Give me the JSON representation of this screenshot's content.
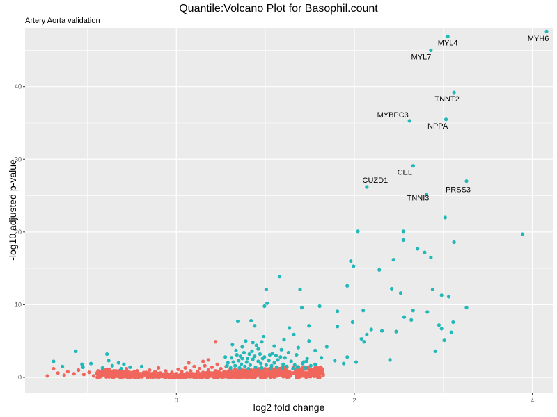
{
  "chart_data": {
    "type": "scatter",
    "title": "Quantile:Volcano Plot for Basophil.count",
    "subtitle": "Artery Aorta validation",
    "xlabel": "log2 fold change",
    "ylabel": "-log10 adjusted p-value",
    "xlim": [
      -1.7,
      4.23
    ],
    "ylim": [
      -2.2,
      48.1
    ],
    "x_ticks": [
      0,
      2,
      4
    ],
    "y_ticks": [
      0,
      10,
      20,
      30,
      40
    ],
    "grid": true,
    "colors": {
      "panel": "#ebebeb",
      "grid": "#ffffff",
      "significant": "#20b8b8",
      "not_significant": "#f0665c"
    },
    "labeled_points": [
      {
        "label": "MYH6",
        "x": 4.16,
        "y": 47.6
      },
      {
        "label": "MYL4",
        "x": 3.05,
        "y": 46.9
      },
      {
        "label": "MYL7",
        "x": 2.86,
        "y": 45.0
      },
      {
        "label": "TNNT2",
        "x": 3.12,
        "y": 39.2
      },
      {
        "label": "MYBPC3",
        "x": 2.62,
        "y": 35.3
      },
      {
        "label": "NPPA",
        "x": 3.03,
        "y": 35.5
      },
      {
        "label": "CEL",
        "x": 2.66,
        "y": 29.1
      },
      {
        "label": "PRSS3",
        "x": 3.26,
        "y": 27.0
      },
      {
        "label": "CUZD1",
        "x": 2.14,
        "y": 26.2
      },
      {
        "label": "TNNI3",
        "x": 2.81,
        "y": 25.2
      }
    ],
    "significant_points": [
      [
        3.89,
        19.7
      ],
      [
        3.02,
        22.0
      ],
      [
        3.12,
        18.6
      ],
      [
        2.04,
        20.1
      ],
      [
        2.55,
        20.1
      ],
      [
        2.55,
        18.9
      ],
      [
        2.71,
        17.7
      ],
      [
        2.79,
        17.2
      ],
      [
        2.86,
        16.5
      ],
      [
        1.96,
        16.0
      ],
      [
        2.44,
        16.2
      ],
      [
        1.99,
        15.3
      ],
      [
        2.28,
        14.8
      ],
      [
        1.16,
        13.9
      ],
      [
        1.01,
        12.1
      ],
      [
        1.39,
        12.1
      ],
      [
        1.92,
        12.6
      ],
      [
        2.42,
        12.2
      ],
      [
        2.52,
        11.6
      ],
      [
        2.88,
        12.1
      ],
      [
        2.98,
        11.3
      ],
      [
        3.06,
        11.1
      ],
      [
        1.02,
        10.2
      ],
      [
        0.99,
        9.8
      ],
      [
        1.41,
        9.6
      ],
      [
        1.61,
        9.8
      ],
      [
        1.81,
        9.1
      ],
      [
        2.1,
        9.2
      ],
      [
        2.66,
        9.2
      ],
      [
        2.82,
        9.0
      ],
      [
        3.26,
        9.6
      ],
      [
        2.56,
        8.3
      ],
      [
        2.64,
        7.9
      ],
      [
        2.95,
        7.2
      ],
      [
        3.11,
        7.6
      ],
      [
        0.84,
        7.8
      ],
      [
        0.69,
        7.7
      ],
      [
        0.88,
        7.1
      ],
      [
        1.49,
        7.1
      ],
      [
        1.81,
        7.0
      ],
      [
        1.98,
        7.6
      ],
      [
        2.19,
        6.6
      ],
      [
        2.47,
        6.3
      ],
      [
        2.98,
        6.7
      ],
      [
        3.09,
        6.2
      ],
      [
        2.14,
        5.9
      ],
      [
        2.08,
        5.3
      ],
      [
        2.11,
        4.9
      ],
      [
        2.31,
        6.4
      ],
      [
        3.01,
        5.1
      ],
      [
        1.27,
        6.8
      ],
      [
        1.32,
        5.9
      ],
      [
        1.21,
        5.2
      ],
      [
        1.37,
        4.1
      ],
      [
        1.49,
        5.0
      ],
      [
        1.69,
        4.2
      ],
      [
        0.98,
        5.6
      ],
      [
        0.78,
        5.0
      ],
      [
        0.63,
        4.5
      ],
      [
        0.67,
        3.7
      ],
      [
        0.82,
        3.2
      ],
      [
        0.74,
        2.6
      ],
      [
        0.92,
        3.9
      ],
      [
        1.05,
        3.1
      ],
      [
        1.14,
        2.4
      ],
      [
        1.26,
        3.4
      ],
      [
        1.43,
        2.1
      ],
      [
        1.56,
        1.8
      ],
      [
        1.63,
        2.7
      ],
      [
        1.78,
        2.3
      ],
      [
        1.88,
        1.9
      ],
      [
        1.92,
        2.8
      ],
      [
        2.02,
        2.1
      ],
      [
        1.56,
        3.7
      ],
      [
        2.91,
        3.6
      ],
      [
        2.4,
        2.4
      ],
      [
        0.58,
        2.0
      ],
      [
        0.61,
        1.3
      ],
      [
        0.66,
        1.6
      ],
      [
        0.7,
        2.3
      ],
      [
        0.73,
        1.8
      ],
      [
        0.77,
        1.5
      ],
      [
        0.79,
        2.1
      ],
      [
        0.83,
        1.7
      ],
      [
        0.86,
        2.5
      ],
      [
        0.89,
        1.4
      ],
      [
        0.92,
        2.2
      ],
      [
        0.95,
        1.9
      ],
      [
        0.97,
        2.6
      ],
      [
        1.01,
        1.7
      ],
      [
        1.04,
        2.3
      ],
      [
        1.07,
        1.6
      ],
      [
        1.1,
        2.0
      ],
      [
        1.13,
        1.4
      ],
      [
        1.17,
        2.8
      ],
      [
        1.2,
        1.8
      ],
      [
        1.24,
        1.5
      ],
      [
        1.29,
        2.2
      ],
      [
        1.33,
        1.7
      ],
      [
        1.36,
        1.4
      ],
      [
        1.42,
        1.9
      ],
      [
        1.46,
        2.2
      ],
      [
        1.51,
        1.6
      ],
      [
        0.55,
        2.8
      ],
      [
        0.62,
        2.7
      ],
      [
        0.68,
        3.1
      ],
      [
        0.72,
        2.9
      ],
      [
        0.76,
        3.4
      ],
      [
        0.8,
        2.6
      ],
      [
        0.85,
        3.6
      ],
      [
        0.88,
        2.9
      ],
      [
        0.94,
        3.2
      ],
      [
        0.99,
        2.8
      ],
      [
        1.08,
        3.3
      ],
      [
        1.12,
        3.0
      ],
      [
        1.18,
        3.8
      ],
      [
        1.22,
        2.7
      ],
      [
        1.35,
        3.1
      ],
      [
        1.47,
        2.6
      ],
      [
        0.57,
        1.6
      ],
      [
        0.64,
        2.1
      ],
      [
        0.71,
        1.3
      ],
      [
        0.81,
        1.2
      ],
      [
        0.96,
        1.3
      ],
      [
        1.06,
        1.2
      ],
      [
        1.19,
        1.3
      ],
      [
        1.31,
        1.2
      ],
      [
        1.45,
        1.3
      ],
      [
        0.9,
        4.4
      ],
      [
        0.86,
        4.8
      ],
      [
        1.1,
        4.3
      ],
      [
        0.96,
        4.9
      ],
      [
        0.74,
        4.2
      ],
      [
        -1.38,
        2.2
      ],
      [
        -1.13,
        3.6
      ],
      [
        -1.06,
        1.8
      ],
      [
        -0.96,
        1.9
      ],
      [
        -0.78,
        3.2
      ],
      [
        -0.76,
        2.3
      ],
      [
        -0.59,
        1.8
      ],
      [
        -0.52,
        1.4
      ],
      [
        -0.72,
        1.6
      ],
      [
        -0.65,
        2.0
      ],
      [
        -0.39,
        1.5
      ],
      [
        -1.28,
        1.5
      ],
      [
        -1.05,
        1.4
      ],
      [
        -0.83,
        1.3
      ],
      [
        -0.62,
        1.2
      ]
    ],
    "nonsignificant_points": [
      [
        -1.45,
        0.2
      ],
      [
        -1.38,
        1.2
      ],
      [
        -1.33,
        0.6
      ],
      [
        -1.26,
        0.3
      ],
      [
        -1.22,
        0.8
      ],
      [
        -1.15,
        0.5
      ],
      [
        -1.1,
        1.0
      ],
      [
        -1.04,
        0.4
      ],
      [
        -0.98,
        0.7
      ],
      [
        -0.93,
        0.2
      ],
      [
        -0.88,
        0.9
      ],
      [
        -0.84,
        0.5
      ],
      [
        -0.79,
        0.3
      ],
      [
        -0.75,
        1.1
      ],
      [
        -0.71,
        0.6
      ],
      [
        -0.67,
        0.2
      ],
      [
        -0.63,
        0.8
      ],
      [
        -0.6,
        0.4
      ],
      [
        -0.56,
        1.2
      ],
      [
        -0.52,
        0.6
      ],
      [
        -0.48,
        0.3
      ],
      [
        -0.44,
        0.9
      ],
      [
        -0.41,
        0.5
      ],
      [
        -0.37,
        0.2
      ],
      [
        -0.34,
        0.7
      ],
      [
        -0.3,
        1.0
      ],
      [
        -0.27,
        0.4
      ],
      [
        -0.24,
        0.8
      ],
      [
        -0.21,
        0.3
      ],
      [
        -0.18,
        0.6
      ],
      [
        -0.15,
        0.2
      ],
      [
        -0.12,
        0.9
      ],
      [
        -0.1,
        0.5
      ],
      [
        -0.07,
        0.3
      ],
      [
        -0.05,
        0.7
      ],
      [
        -0.02,
        0.2
      ],
      [
        0.0,
        0.5
      ],
      [
        0.02,
        1.1
      ],
      [
        0.04,
        0.3
      ],
      [
        0.06,
        0.8
      ],
      [
        0.08,
        0.4
      ],
      [
        0.1,
        1.3
      ],
      [
        0.12,
        0.6
      ],
      [
        0.14,
        0.2
      ],
      [
        0.16,
        0.9
      ],
      [
        0.18,
        0.5
      ],
      [
        0.2,
        1.5
      ],
      [
        0.22,
        0.3
      ],
      [
        0.24,
        0.8
      ],
      [
        0.26,
        1.2
      ],
      [
        0.28,
        0.4
      ],
      [
        0.3,
        0.7
      ],
      [
        0.32,
        1.6
      ],
      [
        0.34,
        0.3
      ],
      [
        0.36,
        1.0
      ],
      [
        0.38,
        0.5
      ],
      [
        0.4,
        1.4
      ],
      [
        0.42,
        0.2
      ],
      [
        0.44,
        0.9
      ],
      [
        0.46,
        1.8
      ],
      [
        0.48,
        0.6
      ],
      [
        0.5,
        1.2
      ],
      [
        0.52,
        0.3
      ],
      [
        0.54,
        0.8
      ],
      [
        0.56,
        1.5
      ],
      [
        0.58,
        0.4
      ],
      [
        0.6,
        1.0
      ],
      [
        0.62,
        0.7
      ],
      [
        0.64,
        0.2
      ],
      [
        0.66,
        1.1
      ],
      [
        0.68,
        0.5
      ],
      [
        0.7,
        0.9
      ],
      [
        0.72,
        0.3
      ],
      [
        0.74,
        1.0
      ],
      [
        0.76,
        0.6
      ],
      [
        0.78,
        0.2
      ],
      [
        0.8,
        0.8
      ],
      [
        0.82,
        0.4
      ],
      [
        0.84,
        1.0
      ],
      [
        0.86,
        0.3
      ],
      [
        0.88,
        0.7
      ],
      [
        0.9,
        0.2
      ],
      [
        0.92,
        0.9
      ],
      [
        0.94,
        0.5
      ],
      [
        0.96,
        0.3
      ],
      [
        0.98,
        0.8
      ],
      [
        1.0,
        0.4
      ],
      [
        1.02,
        0.2
      ],
      [
        1.04,
        0.7
      ],
      [
        1.06,
        0.3
      ],
      [
        1.08,
        0.9
      ],
      [
        1.1,
        0.5
      ],
      [
        1.13,
        0.2
      ],
      [
        1.16,
        0.6
      ],
      [
        1.19,
        0.3
      ],
      [
        1.22,
        0.8
      ],
      [
        1.25,
        0.4
      ],
      [
        1.28,
        0.2
      ],
      [
        1.31,
        0.6
      ],
      [
        1.35,
        0.3
      ],
      [
        1.38,
        0.7
      ],
      [
        1.42,
        0.2
      ],
      [
        1.46,
        0.5
      ],
      [
        1.5,
        0.3
      ],
      [
        1.55,
        0.6
      ],
      [
        1.6,
        0.2
      ],
      [
        1.65,
        0.4
      ],
      [
        0.44,
        4.9
      ],
      [
        0.3,
        2.2
      ],
      [
        0.36,
        2.4
      ],
      [
        0.14,
        2.0
      ],
      [
        -0.2,
        1.3
      ]
    ]
  }
}
